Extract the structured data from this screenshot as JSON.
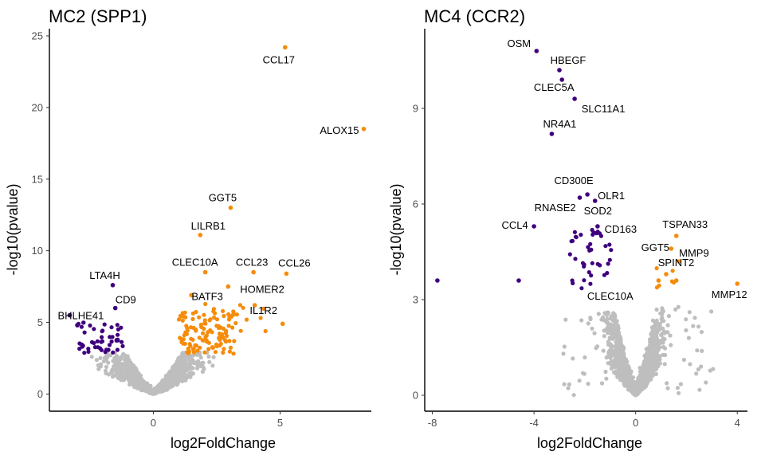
{
  "chart_data": [
    {
      "type": "scatter",
      "title": "MC2 (SPP1)",
      "xlabel": "log2FoldChange",
      "ylabel": "-log10(pvalue)",
      "xlim": [
        -4.1,
        8.6
      ],
      "ylim": [
        -1.2,
        25.5
      ],
      "xticks": [
        0,
        5
      ],
      "yticks": [
        0,
        5,
        10,
        15,
        20,
        25
      ],
      "grid": false,
      "colors": {
        "down": "#3f007d",
        "up": "#f58c0a",
        "ns": "#bebebe"
      },
      "series": [
        {
          "group": "up",
          "x": [
            5.2,
            8.3,
            3.05,
            1.85,
            2.05,
            3.95,
            5.25,
            1.5,
            2.95,
            4.0,
            5.1
          ],
          "y": [
            24.2,
            18.5,
            13.0,
            11.1,
            8.5,
            8.5,
            8.4,
            6.9,
            7.5,
            6.2,
            4.9
          ]
        },
        {
          "group": "down",
          "x": [
            -1.6,
            -3.3,
            -1.5,
            -3.0
          ],
          "y": [
            7.6,
            5.5,
            6.0,
            4.8
          ]
        }
      ],
      "labels": [
        {
          "text": "CCL17",
          "x": 5.2,
          "y": 24.2
        },
        {
          "text": "ALOX15",
          "x": 8.3,
          "y": 18.5
        },
        {
          "text": "GGT5",
          "x": 3.05,
          "y": 13.0
        },
        {
          "text": "LILRB1",
          "x": 1.85,
          "y": 11.1
        },
        {
          "text": "CLEC10A",
          "x": 2.05,
          "y": 8.5
        },
        {
          "text": "CCL23",
          "x": 3.95,
          "y": 8.5
        },
        {
          "text": "CCL26",
          "x": 5.25,
          "y": 8.4
        },
        {
          "text": "HOMER2",
          "x": 4.2,
          "y": 7.5
        },
        {
          "text": "BATF3",
          "x": 1.5,
          "y": 6.9
        },
        {
          "text": "IL1R2",
          "x": 4.0,
          "y": 6.2
        },
        {
          "text": "LTA4H",
          "x": -1.6,
          "y": 7.6
        },
        {
          "text": "CD9",
          "x": -1.5,
          "y": 6.0
        },
        {
          "text": "BHLHE41",
          "x": -3.3,
          "y": 5.5
        }
      ]
    },
    {
      "type": "scatter",
      "title": "MC4 (CCR2)",
      "xlabel": "log2FoldChange",
      "ylabel": "-log10(pvalue)",
      "xlim": [
        -8.3,
        4.4
      ],
      "ylim": [
        -0.5,
        11.5
      ],
      "xticks": [
        -8,
        -4,
        0,
        4
      ],
      "yticks": [
        0,
        3,
        6,
        9
      ],
      "grid": false,
      "colors": {
        "down": "#3f007d",
        "up": "#f58c0a",
        "ns": "#bebebe"
      },
      "series": [
        {
          "group": "down",
          "x": [
            -3.9,
            -3.0,
            -2.9,
            -2.4,
            -3.3,
            -1.9,
            -2.2,
            -1.6,
            -4.0,
            -1.5,
            -7.8,
            -4.6
          ],
          "y": [
            10.8,
            10.2,
            9.9,
            9.3,
            8.2,
            6.3,
            6.2,
            6.1,
            5.3,
            5.3,
            3.6,
            3.6
          ]
        },
        {
          "group": "up",
          "x": [
            4.0,
            1.6,
            1.4,
            1.7,
            1.2,
            0.9,
            1.6
          ],
          "y": [
            3.5,
            5.0,
            4.6,
            4.2,
            3.8,
            3.6,
            3.6
          ]
        }
      ],
      "labels": [
        {
          "text": "OSM",
          "x": -3.9,
          "y": 10.8
        },
        {
          "text": "HBEGF",
          "x": -3.0,
          "y": 10.2
        },
        {
          "text": "CLEC5A",
          "x": -2.9,
          "y": 9.9
        },
        {
          "text": "SLC11A1",
          "x": -2.4,
          "y": 9.3
        },
        {
          "text": "NR4A1",
          "x": -3.3,
          "y": 8.2
        },
        {
          "text": "CD300E",
          "x": -2.4,
          "y": 6.5
        },
        {
          "text": "OLR1",
          "x": -1.9,
          "y": 6.3
        },
        {
          "text": "RNASE2",
          "x": -2.7,
          "y": 6.2
        },
        {
          "text": "SOD2",
          "x": -1.8,
          "y": 6.0
        },
        {
          "text": "CCL4",
          "x": -4.0,
          "y": 5.3
        },
        {
          "text": "CD163",
          "x": -1.5,
          "y": 5.3
        },
        {
          "text": "TSPAN33",
          "x": 1.6,
          "y": 5.0
        },
        {
          "text": "GGT5",
          "x": 1.4,
          "y": 4.6
        },
        {
          "text": "MMP9",
          "x": 1.7,
          "y": 4.5
        },
        {
          "text": "SPINT2",
          "x": 1.5,
          "y": 3.9
        },
        {
          "text": "CLEC10A",
          "x": -1.0,
          "y": 3.3
        },
        {
          "text": "MMP12",
          "x": 4.0,
          "y": 3.5
        }
      ]
    }
  ]
}
